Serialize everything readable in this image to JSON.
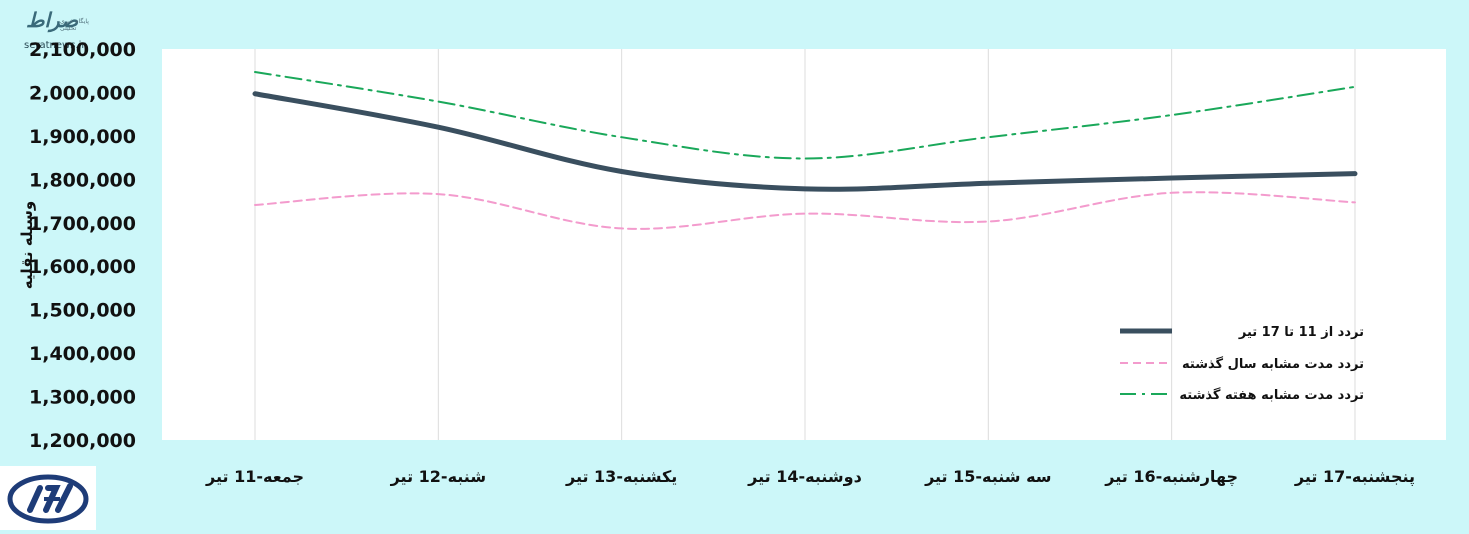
{
  "watermark": {
    "title": "صراط",
    "tagline": "پایگاه خبری تحلیلی",
    "url": "seratnews.ir"
  },
  "logo_icon": "road-transport-organization-logo-icon",
  "colors": {
    "background": "#ccf7f9",
    "plot_background": "#ffffff",
    "series_current": "#3a4f5f",
    "series_last_year": "#f39bcd",
    "series_last_week": "#1aa85a"
  },
  "chart_data": {
    "type": "line",
    "ylabel": "وسیله نقلیه",
    "xlabel": "",
    "ylim": [
      1200000,
      2100000
    ],
    "yticks": [
      1200000,
      1300000,
      1400000,
      1500000,
      1600000,
      1700000,
      1800000,
      1900000,
      2000000,
      2100000
    ],
    "ytick_labels": [
      "1,200,000",
      "1,300,000",
      "1,400,000",
      "1,500,000",
      "1,600,000",
      "1,700,000",
      "1,800,000",
      "1,900,000",
      "2,000,000",
      "2,100,000"
    ],
    "categories": [
      "جمعه-11 تیر",
      "شنبه-12 تیر",
      "یکشنبه-13 تیر",
      "دوشنبه-14 تیر",
      "سه شنبه-15 تیر",
      "چهارشنبه-16 تیر",
      "پنجشنبه-17 تیر"
    ],
    "grid": "vertical",
    "legend_position": "bottom-right",
    "series": [
      {
        "name": "تردد از 11 تا 17 تیر",
        "style": "solid",
        "values": [
          1997000,
          1920000,
          1818000,
          1778000,
          1791000,
          1803000,
          1813000
        ]
      },
      {
        "name": "تردد مدت مشابه سال گذشته",
        "style": "dashed",
        "values": [
          1741000,
          1766000,
          1687000,
          1721000,
          1703000,
          1769000,
          1747000
        ]
      },
      {
        "name": "تردد مدت مشابه هفته گذشته",
        "style": "dashdot",
        "values": [
          2047000,
          1979000,
          1897000,
          1848000,
          1897000,
          1948000,
          2013000
        ]
      }
    ]
  }
}
